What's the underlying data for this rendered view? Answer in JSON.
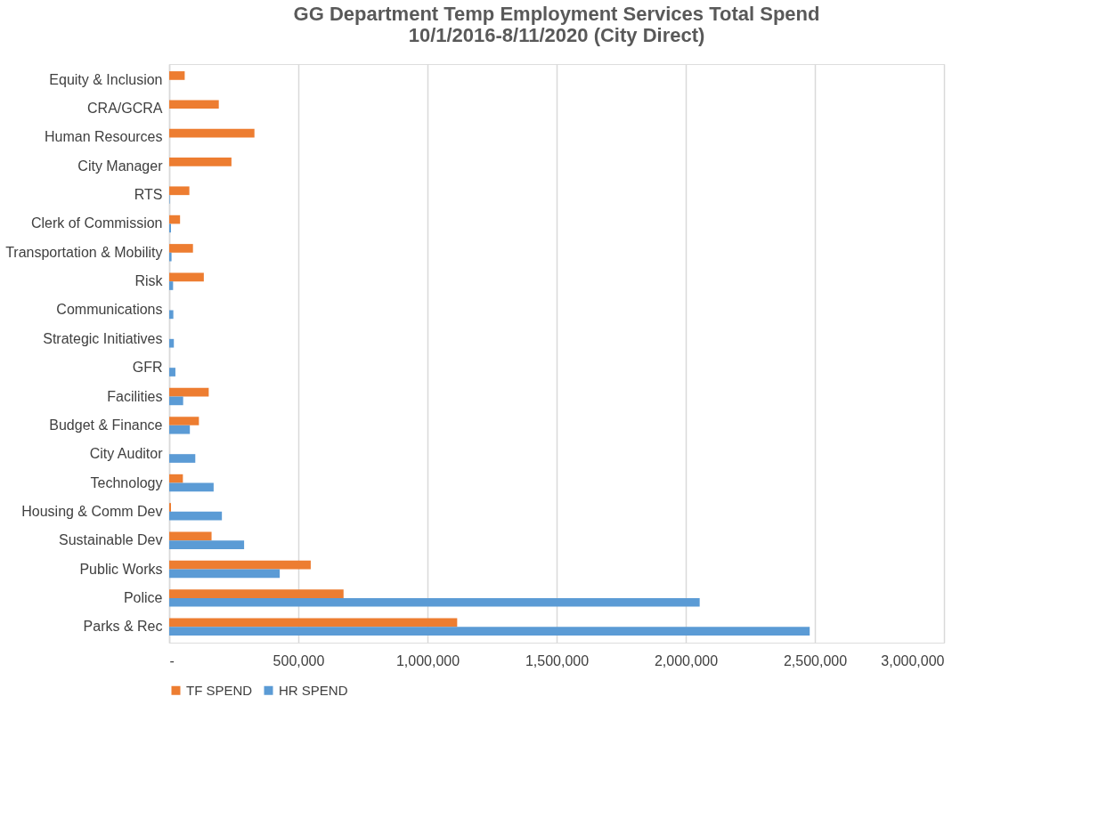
{
  "chart_data": {
    "type": "bar",
    "orientation": "horizontal",
    "title": [
      "GG Department Temp Employment Services Total Spend",
      "10/1/2016-8/11/2020 (City Direct)"
    ],
    "categories": [
      "Equity & Inclusion",
      "CRA/GCRA",
      "Human Resources",
      "City Manager",
      "RTS",
      "Clerk of Commission",
      "Transportation & Mobility",
      "Risk",
      "Communications",
      "Strategic Initiatives",
      "GFR",
      "Facilities",
      "Budget & Finance",
      "City Auditor",
      "Technology",
      "Housing & Comm Dev",
      "Sustainable Dev",
      "Public Works",
      "Police",
      "Parks & Rec"
    ],
    "series": [
      {
        "name": "TF SPEND",
        "color": "#ed7d31",
        "values": [
          60000,
          192000,
          330000,
          241000,
          78000,
          42000,
          92000,
          134000,
          null,
          null,
          null,
          153000,
          115000,
          null,
          53000,
          7000,
          164000,
          548000,
          675000,
          1115000
        ]
      },
      {
        "name": "HR SPEND",
        "color": "#5b9bd5",
        "values": [
          null,
          null,
          null,
          null,
          2000,
          7000,
          9000,
          15000,
          16000,
          18000,
          24000,
          54000,
          80000,
          101000,
          172000,
          204000,
          290000,
          428000,
          2054000,
          2480000
        ]
      }
    ],
    "xlim": [
      0,
      3000000
    ],
    "xticks": [
      {
        "value": 0,
        "label": "-"
      },
      {
        "value": 500000,
        "label": "500,000"
      },
      {
        "value": 1000000,
        "label": "1,000,000"
      },
      {
        "value": 1500000,
        "label": "1,500,000"
      },
      {
        "value": 2000000,
        "label": "2,000,000"
      },
      {
        "value": 2500000,
        "label": "2,500,000"
      },
      {
        "value": 3000000,
        "label": "3,000,000"
      }
    ],
    "grid": "x",
    "legend": "bottom"
  }
}
